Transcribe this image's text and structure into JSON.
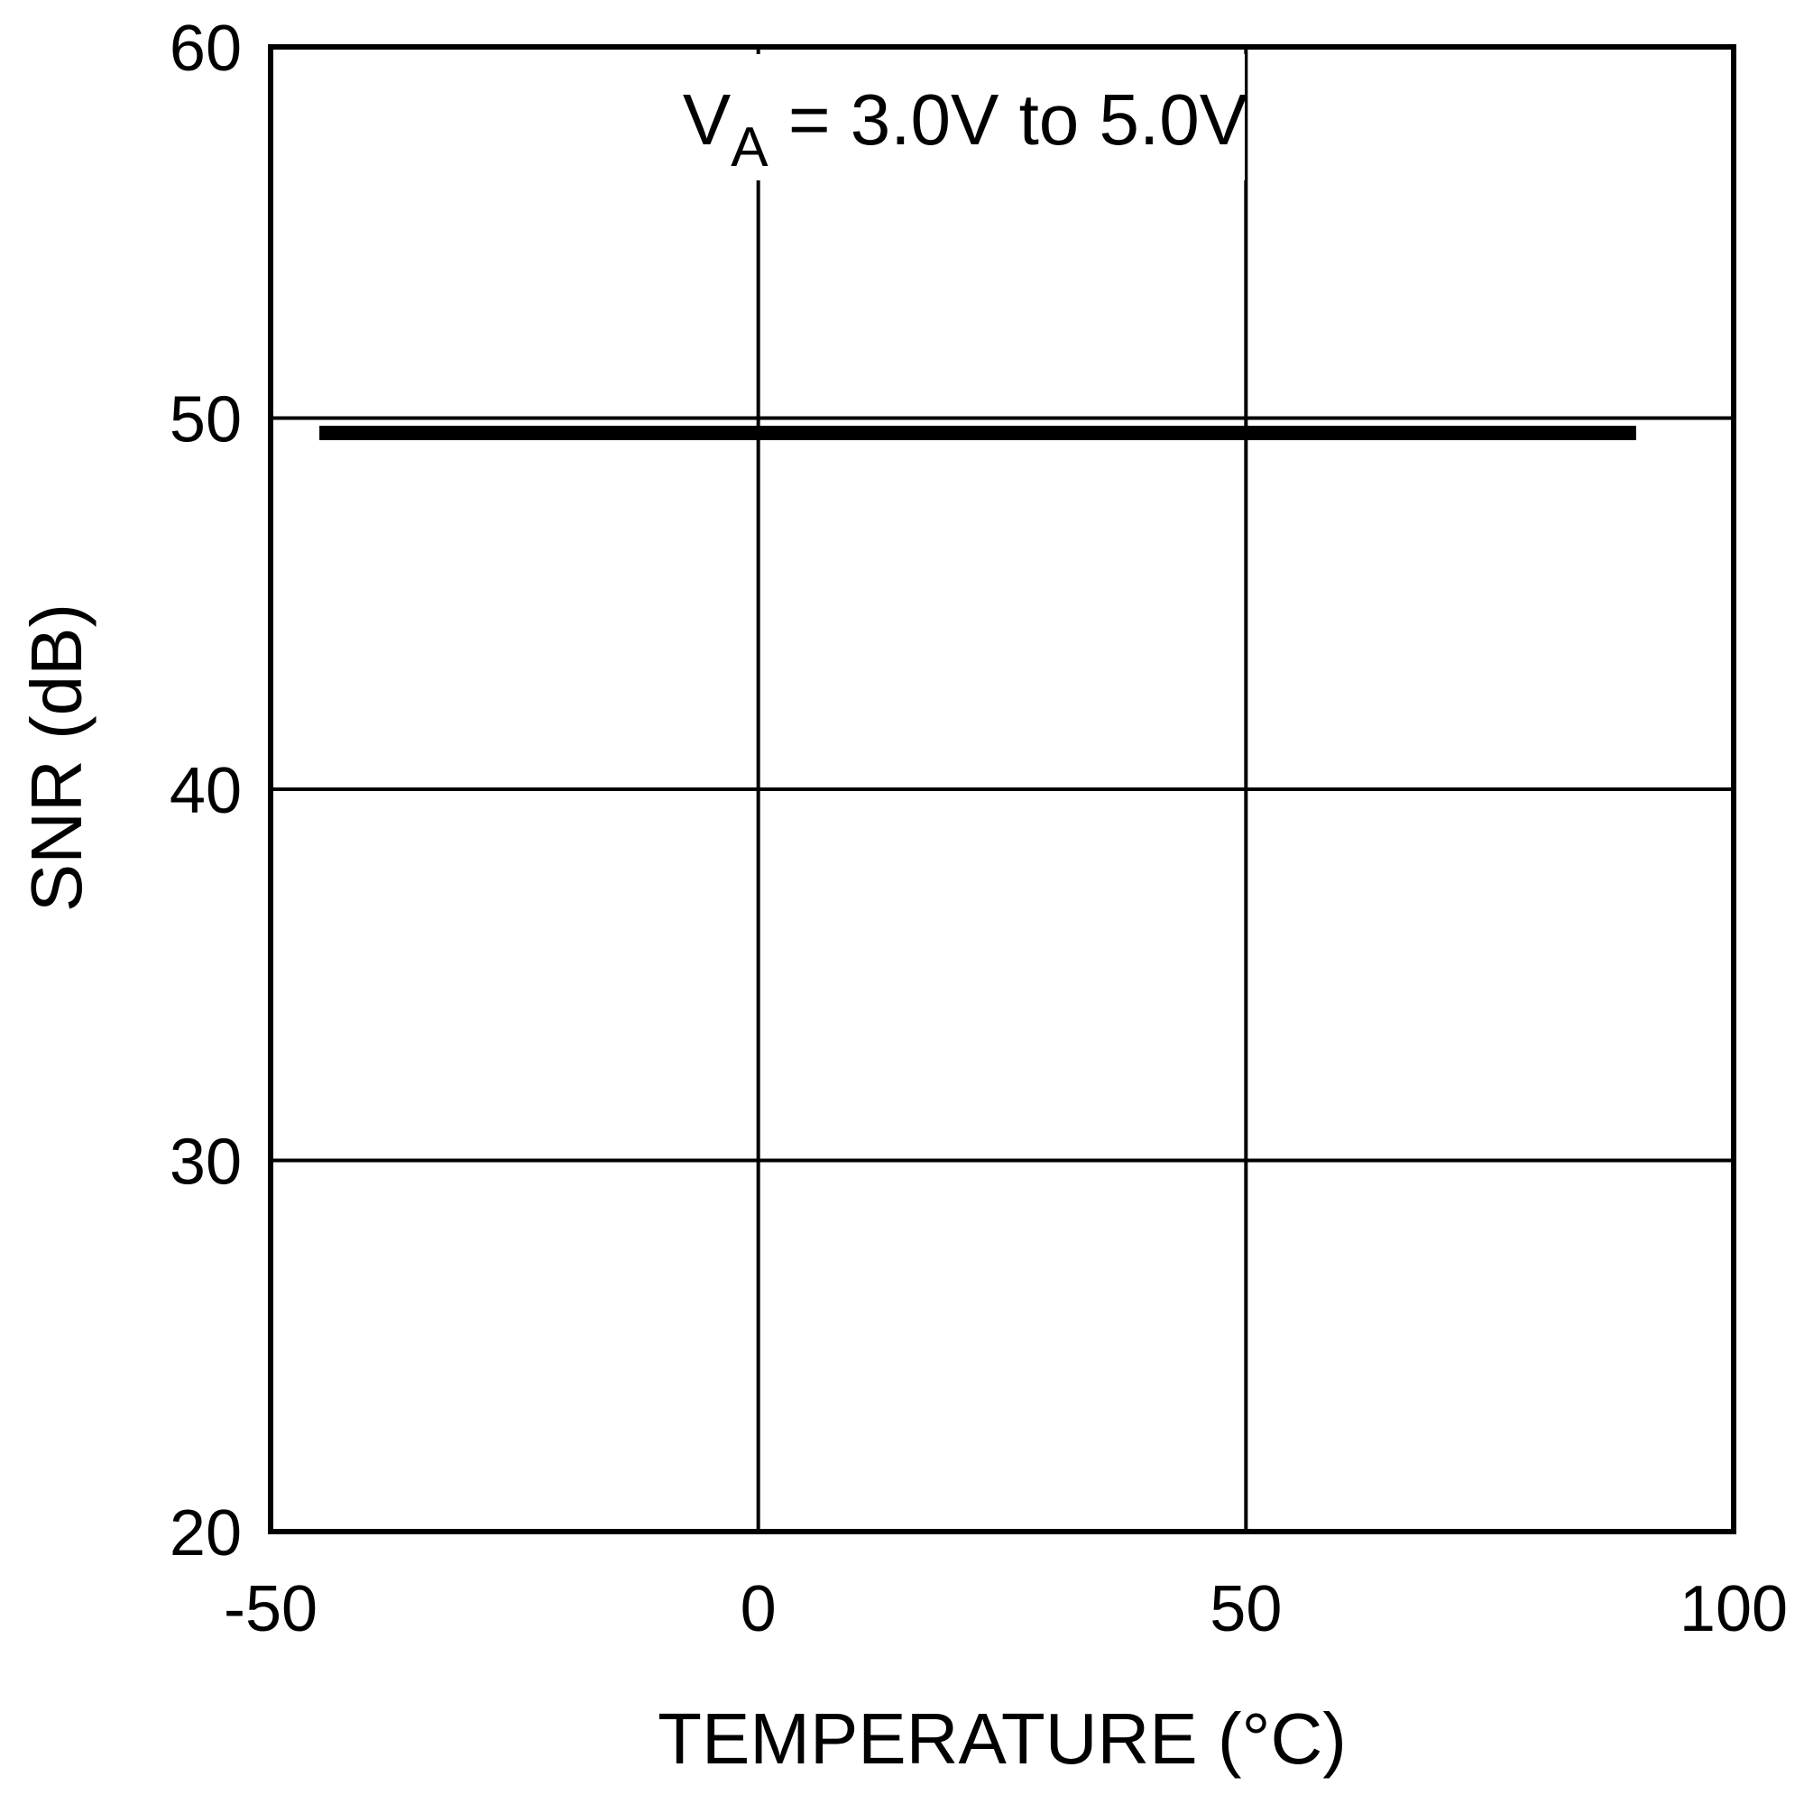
{
  "chart_data": {
    "type": "line",
    "xlabel": "TEMPERATURE (°C)",
    "ylabel": "SNR (dB)",
    "xlim": [
      -50,
      100
    ],
    "ylim": [
      20,
      60
    ],
    "xticks": [
      "-50",
      "0",
      "50",
      "100"
    ],
    "yticks": [
      "20",
      "30",
      "40",
      "50",
      "60"
    ],
    "grid": true,
    "annotation": {
      "main": "V",
      "subscript": "A",
      "rest": " = 3.0V to 5.0V"
    },
    "series": [
      {
        "x": [
          -45,
          90
        ],
        "y": [
          49.6,
          49.6
        ]
      }
    ]
  }
}
